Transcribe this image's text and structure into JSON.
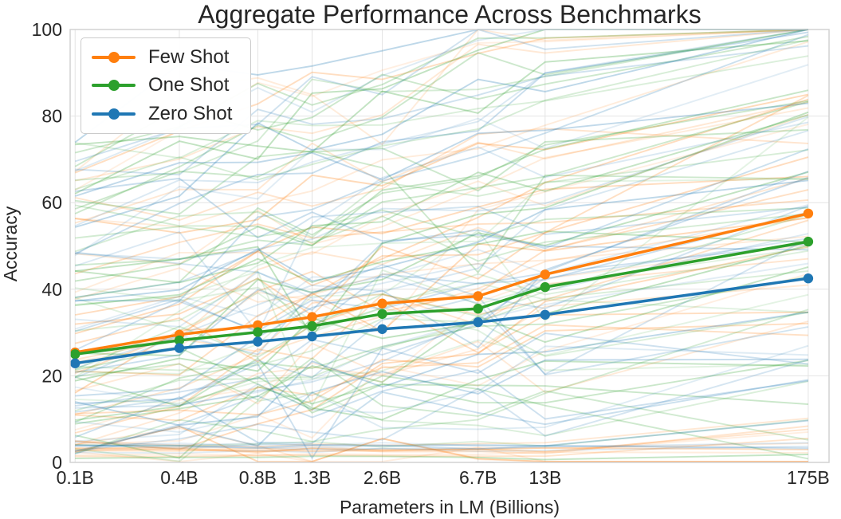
{
  "chart_data": {
    "type": "line",
    "title": "Aggregate Performance Across Benchmarks",
    "xlabel": "Parameters in LM (Billions)",
    "ylabel": "Accuracy",
    "x_scale": "log",
    "x_params_billions": [
      0.125,
      0.35,
      0.76,
      1.3,
      2.6,
      6.7,
      13,
      175
    ],
    "x_tick_labels": [
      "0.1B",
      "0.4B",
      "0.8B",
      "1.3B",
      "2.6B",
      "6.7B",
      "13B",
      "175B"
    ],
    "y_ticks": [
      0,
      20,
      40,
      60,
      80,
      100
    ],
    "y_tick_labels": [
      "0",
      "20",
      "40",
      "60",
      "80",
      "100"
    ],
    "ylim": [
      0,
      100
    ],
    "xlim_billions": [
      0.119,
      215
    ],
    "grid": true,
    "legend_position": "upper-left",
    "series": [
      {
        "name": "Few Shot",
        "color": "#ff7f0e",
        "values": [
          25.4,
          29.5,
          31.7,
          33.6,
          36.7,
          38.4,
          43.4,
          57.5
        ]
      },
      {
        "name": "One Shot",
        "color": "#2ca02c",
        "values": [
          25.0,
          28.2,
          30.1,
          31.5,
          34.3,
          35.5,
          40.5,
          51.0
        ]
      },
      {
        "name": "Zero Shot",
        "color": "#1f77b4",
        "values": [
          22.9,
          26.4,
          27.9,
          29.1,
          30.8,
          32.4,
          34.1,
          42.5
        ]
      }
    ],
    "background_lines": {
      "description": "faint per-benchmark accuracy curves, one per benchmark for each shot setting",
      "per_series_count": 42,
      "alpha_range": [
        0.12,
        0.3
      ],
      "seed": 1337
    },
    "colors": {
      "grid": "#e4e4e4",
      "frame": "#d2d2d2",
      "text": "#262626",
      "title": "#303030"
    }
  }
}
